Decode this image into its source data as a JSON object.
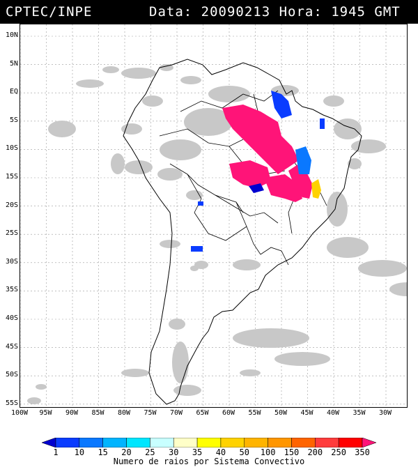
{
  "header": {
    "org": "CPTEC/INPE",
    "datetime": "Data: 20090213 Hora: 1945 GMT"
  },
  "map": {
    "lat_labels": [
      "10N",
      "5N",
      "EQ",
      "5S",
      "10S",
      "15S",
      "20S",
      "25S",
      "30S",
      "35S",
      "40S",
      "45S",
      "50S",
      "55S"
    ],
    "lon_labels": [
      "100W",
      "95W",
      "90W",
      "85W",
      "80W",
      "75W",
      "70W",
      "65W",
      "60W",
      "55W",
      "50W",
      "45W",
      "40W",
      "35W",
      "30W"
    ],
    "colors": {
      "cloud": "#c8c8c8",
      "cloud_dark": "#a8a8a8",
      "coast": "#000000",
      "grid": "#9a9a9a"
    }
  },
  "legend": {
    "values": [
      "1",
      "10",
      "15",
      "20",
      "25",
      "30",
      "35",
      "40",
      "50",
      "100",
      "150",
      "200",
      "250",
      "350"
    ],
    "colors": [
      "#0000d0",
      "#0a3cff",
      "#0a78ff",
      "#00b4ff",
      "#00e6ff",
      "#c8ffff",
      "#ffffc8",
      "#ffff00",
      "#ffd200",
      "#ffb400",
      "#ff9600",
      "#ff6400",
      "#ff3c3c",
      "#ff0000",
      "#ff1478"
    ],
    "title": "Numero de raios por Sistema Convectivo"
  }
}
